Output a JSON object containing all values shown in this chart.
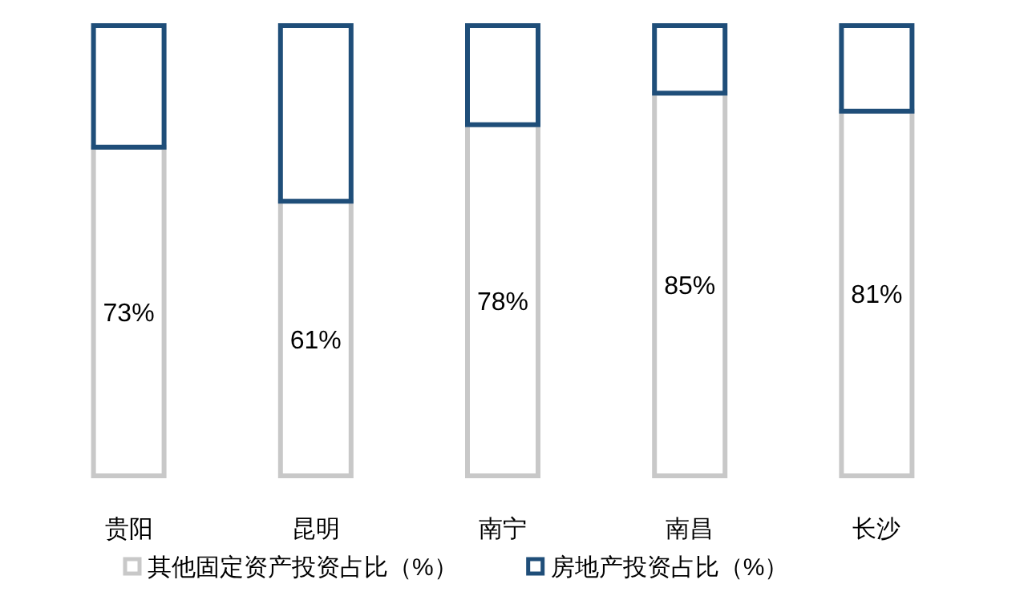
{
  "chart_data": {
    "type": "bar",
    "stacked": true,
    "legend": "bottom",
    "categories": [
      "贵阳",
      "昆明",
      "南宁",
      "南昌",
      "长沙"
    ],
    "series": [
      {
        "name": "其他固定资产投资占比（%）",
        "color": "#c8c8c8",
        "values": [
          73,
          61,
          78,
          85,
          81
        ],
        "value_labels": [
          "73%",
          "61%",
          "78%",
          "85%",
          "81%"
        ]
      },
      {
        "name": "房地产投资占比（%）",
        "color": "#1f4e79",
        "values": [
          27,
          39,
          22,
          15,
          19
        ]
      }
    ]
  }
}
